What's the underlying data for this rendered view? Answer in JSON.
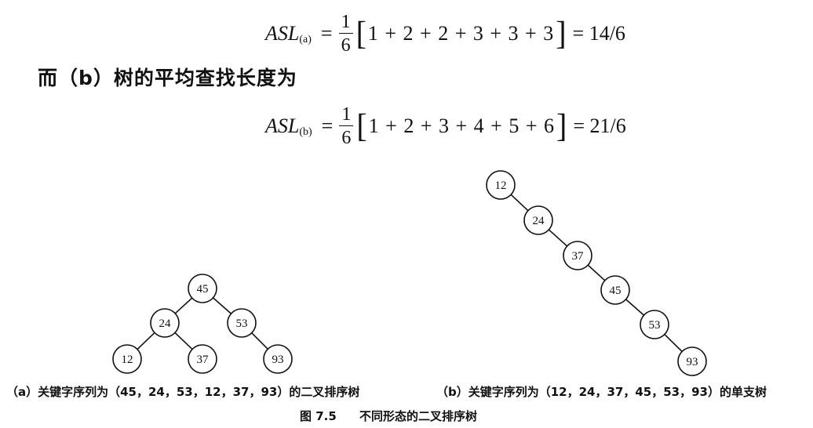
{
  "formula_a": {
    "lhs": "ASL",
    "subscript": "(a)",
    "frac_num": "1",
    "frac_den": "6",
    "sum": "1 + 2 + 2 + 3 + 3 + 3",
    "result": "= 14/6"
  },
  "paragraph": "而（b）树的平均查找长度为",
  "formula_b": {
    "lhs": "ASL",
    "subscript": "(b)",
    "frac_num": "1",
    "frac_den": "6",
    "sum": "1 + 2 + 3 + 4 + 5 + 6",
    "result": "= 21/6"
  },
  "tree_a": {
    "nodes": [
      {
        "id": "n45",
        "label": "45"
      },
      {
        "id": "n24",
        "label": "24"
      },
      {
        "id": "n53",
        "label": "53"
      },
      {
        "id": "n12",
        "label": "12"
      },
      {
        "id": "n37",
        "label": "37"
      },
      {
        "id": "n93",
        "label": "93"
      }
    ],
    "edges": [
      [
        "n45",
        "n24"
      ],
      [
        "n45",
        "n53"
      ],
      [
        "n24",
        "n12"
      ],
      [
        "n24",
        "n37"
      ],
      [
        "n53",
        "n93"
      ]
    ]
  },
  "tree_b": {
    "nodes": [
      {
        "id": "m12",
        "label": "12"
      },
      {
        "id": "m24",
        "label": "24"
      },
      {
        "id": "m37",
        "label": "37"
      },
      {
        "id": "m45",
        "label": "45"
      },
      {
        "id": "m53",
        "label": "53"
      },
      {
        "id": "m93",
        "label": "93"
      }
    ],
    "edges": [
      [
        "m12",
        "m24"
      ],
      [
        "m24",
        "m37"
      ],
      [
        "m37",
        "m45"
      ],
      [
        "m45",
        "m53"
      ],
      [
        "m53",
        "m93"
      ]
    ]
  },
  "caption_a": "（a）关键字序列为（45，24，53，12，37，93）的二叉排序树",
  "caption_b": "（b）关键字序列为（12，24，37，45，53，93）的单支树",
  "figure": {
    "number": "图 7.5",
    "title": "不同形态的二叉排序树"
  }
}
